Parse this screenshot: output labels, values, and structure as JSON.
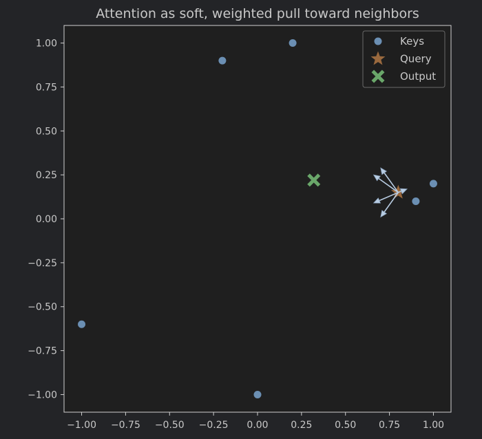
{
  "chart_data": {
    "type": "scatter",
    "title": "Attention as soft, weighted pull toward neighbors",
    "xlabel": "",
    "ylabel": "",
    "xlim": [
      -1.1,
      1.1
    ],
    "ylim": [
      -1.1,
      1.1
    ],
    "xticks": [
      -1.0,
      -0.75,
      -0.5,
      -0.25,
      0.0,
      0.25,
      0.5,
      0.75,
      1.0
    ],
    "yticks": [
      -1.0,
      -0.75,
      -0.5,
      -0.25,
      0.0,
      0.25,
      0.5,
      0.75,
      1.0
    ],
    "xtick_labels": [
      "−1.00",
      "−0.75",
      "−0.50",
      "−0.25",
      "0.00",
      "0.25",
      "0.50",
      "0.75",
      "1.00"
    ],
    "ytick_labels": [
      "−1.00",
      "−0.75",
      "−0.50",
      "−0.25",
      "0.00",
      "0.25",
      "0.50",
      "0.75",
      "1.00"
    ],
    "grid": false,
    "legend_position": "top-right",
    "series": [
      {
        "name": "Keys",
        "marker": "circle",
        "color": "#6b8fb3",
        "points": [
          [
            0.2,
            1.0
          ],
          [
            -0.2,
            0.9
          ],
          [
            1.0,
            0.2
          ],
          [
            0.9,
            0.1
          ],
          [
            -1.0,
            -0.6
          ],
          [
            0.0,
            -1.0
          ]
        ]
      },
      {
        "name": "Query",
        "marker": "star",
        "color": "#b07744",
        "points": [
          [
            0.8,
            0.15
          ]
        ]
      },
      {
        "name": "Output",
        "marker": "x",
        "color": "#6aa76a",
        "points": [
          [
            0.32,
            0.22
          ]
        ]
      }
    ],
    "arrows": {
      "color": "#b9cde3",
      "origin": [
        0.8,
        0.15
      ],
      "directions": [
        [
          0.7,
          0.29
        ],
        [
          0.66,
          0.25
        ],
        [
          0.85,
          0.17
        ],
        [
          0.66,
          0.09
        ],
        [
          0.7,
          0.01
        ]
      ]
    },
    "colors": {
      "background": "#232427",
      "plot_background": "#1f1f1f",
      "axes": "#d0d0d0"
    }
  }
}
